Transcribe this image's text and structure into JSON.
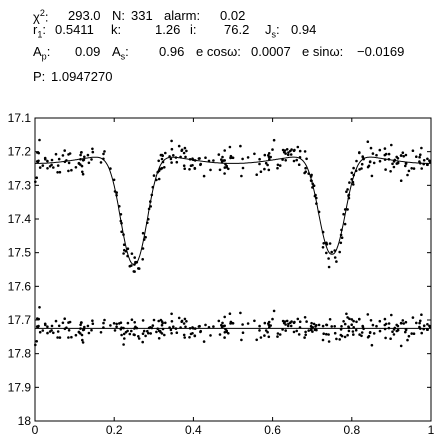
{
  "stats": {
    "chi2_label": "χ",
    "chi2_sup": "2",
    "chi2_colon": ":",
    "chi2_value": "293.0",
    "n_label": "N:",
    "n_value": "331",
    "alarm_label": "alarm:",
    "alarm_value": "0.02",
    "r1_label": "r",
    "r1_sub": "1",
    "r1_colon": ":",
    "r1_value": "0.5411",
    "k_label": "k:",
    "k_value": "1.26",
    "i_label": "i:",
    "i_value": "76.2",
    "js_label": "J",
    "js_sub": "s",
    "js_colon": ":",
    "js_value": "0.94",
    "ap_label": "A",
    "ap_sub": "p",
    "ap_colon": ":",
    "ap_value": "0.09",
    "as_label": "A",
    "as_sub": "s",
    "as_colon": ":",
    "as_value": "0.96",
    "ecos_label": "e cosω:",
    "ecos_value": "0.0007",
    "esin_label": "e sinω:",
    "esin_value": "−0.0169",
    "p_label": "P:",
    "p_value": "1.0947270"
  },
  "chart_data": {
    "type": "scatter",
    "title": "",
    "xlabel": "",
    "ylabel": "",
    "xlim": [
      0,
      1
    ],
    "ylim": [
      18,
      17.1
    ],
    "y_inverted": true,
    "x_ticks": [
      0,
      0.2,
      0.4,
      0.6,
      0.8,
      1
    ],
    "y_ticks": [
      17.1,
      17.2,
      17.3,
      17.4,
      17.5,
      17.6,
      17.7,
      17.8,
      17.9,
      18
    ],
    "grid": false,
    "legend": "none",
    "model_lightcurve": {
      "baseline": 17.22,
      "primary_eclipse": {
        "phase": 0.25,
        "depth": 0.33
      },
      "secondary_eclipse": {
        "phase": 0.75,
        "depth": 0.3
      },
      "out_of_eclipse_variation": 0.03
    },
    "residuals_baseline": 17.725,
    "n_points": 331,
    "point_scatter_mag": 0.02,
    "marker_color": "#000000",
    "line_color": "#000000"
  }
}
